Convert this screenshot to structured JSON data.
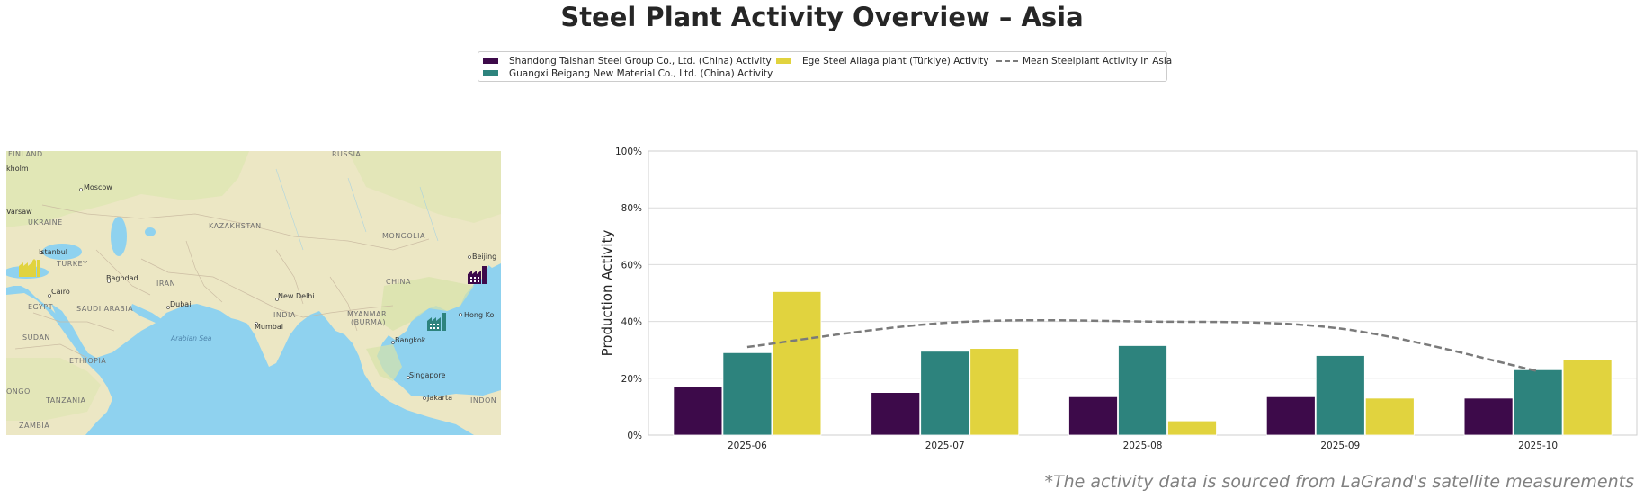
{
  "title": "Steel Plant Activity Overview – Asia",
  "footnote": "*The activity data is sourced from LaGrand's satellite measurements",
  "legend": {
    "shandong": "Shandong Taishan Steel Group Co., Ltd. (China) Activity",
    "guangxi": "Guangxi Beigang New Material Co., Ltd. (China) Activity",
    "ege": "Ege Steel Aliaga plant (Türkiye) Activity",
    "mean": "Mean Steelplant Activity in Asia"
  },
  "map": {
    "labels": {
      "finland": "FINLAND",
      "russia": "RUSSIA",
      "stockholm": "kholm",
      "moscow": "Moscow",
      "warsaw": "Varsaw",
      "ukraine": "UKRAINE",
      "kazakhstan": "KAZAKHSTAN",
      "mongolia": "MONGOLIA",
      "istanbul": "Istanbul",
      "beijing": "Beijing",
      "turkey": "TURKEY",
      "baghdad": "Baghdad",
      "iran": "IRAN",
      "china": "CHINA",
      "cairo": "Cairo",
      "new_delhi": "New Delhi",
      "egypt": "EGYPT",
      "saudi": "SAUDI ARABIA",
      "dubai": "Dubai",
      "india": "INDIA",
      "myanmar": "MYANMAR",
      "burma": "(BURMA)",
      "hong_kong": "Hong Ko",
      "mumbai": "Mumbai",
      "sudan": "SUDAN",
      "arabian_sea": "Arabian Sea",
      "bangkok": "Bangkok",
      "ethiopia": "ETHIOPIA",
      "singapore": "Singapore",
      "congo": "ONGO",
      "tanzania": "TANZANIA",
      "jakarta": "Jakarta",
      "indonesia": "INDON",
      "zambia": "ZAMBIA"
    }
  },
  "colors": {
    "shandong": "#3d0a4a",
    "guangxi": "#2d837d",
    "ege": "#e1d33e",
    "mean": "#7a7a7a"
  },
  "icons": [
    "factory-icon-ege",
    "factory-icon-shandong",
    "factory-icon-guangxi"
  ],
  "chart_data": {
    "type": "bar",
    "categories": [
      "2025-06",
      "2025-07",
      "2025-08",
      "2025-09",
      "2025-10"
    ],
    "series": [
      {
        "name": "Shandong Taishan Steel Group Co., Ltd. (China) Activity",
        "key": "shandong",
        "values": [
          17,
          15,
          13.5,
          13.5,
          13
        ]
      },
      {
        "name": "Guangxi Beigang New Material Co., Ltd. (China) Activity",
        "key": "guangxi",
        "values": [
          29,
          29.5,
          31.5,
          28,
          23
        ]
      },
      {
        "name": "Ege Steel Aliaga plant (Türkiye) Activity",
        "key": "ege",
        "values": [
          50.5,
          30.5,
          5,
          13,
          26.5
        ]
      }
    ],
    "line": {
      "name": "Mean Steelplant Activity in Asia",
      "type": "dashed",
      "values": [
        31,
        39.5,
        40,
        37.5,
        22.5
      ]
    },
    "ylabel": "Production Activity",
    "xlabel": "",
    "ylim": [
      0,
      100
    ],
    "yticks": [
      "0%",
      "20%",
      "40%",
      "60%",
      "80%",
      "100%"
    ],
    "grid": true,
    "legend_position": "top-center"
  }
}
